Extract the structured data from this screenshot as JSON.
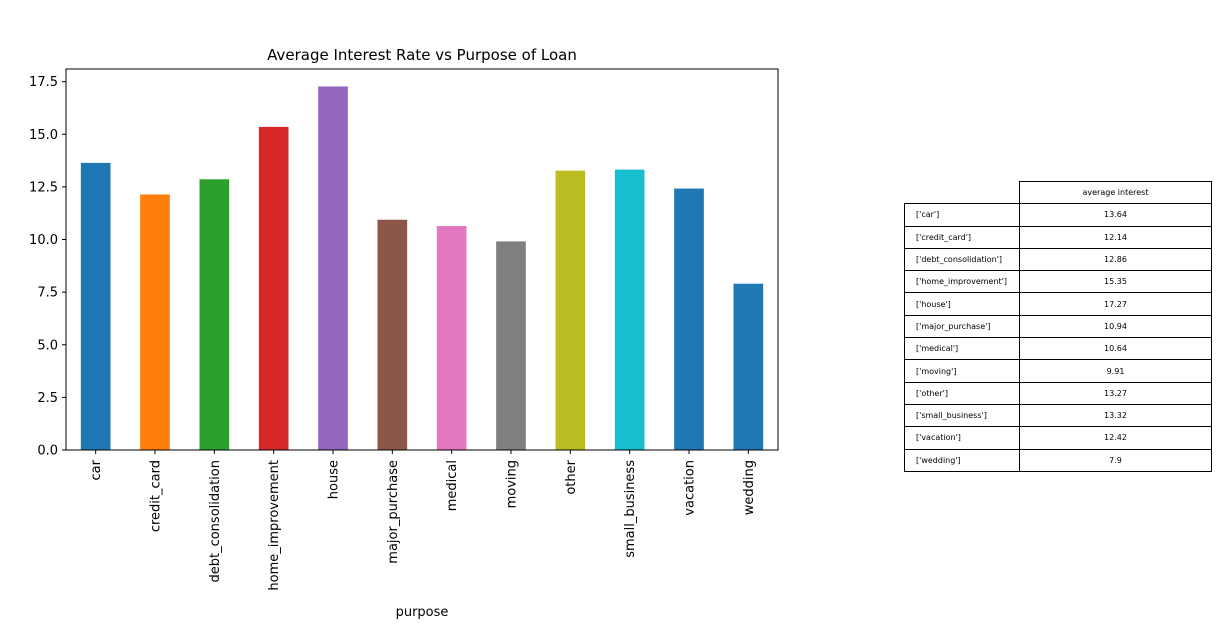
{
  "chart_data": {
    "type": "bar",
    "title": "Average Interest Rate vs Purpose of Loan",
    "xlabel": "purpose",
    "ylabel": "",
    "ylim": [
      0,
      18.1
    ],
    "yticks": [
      "0.0",
      "2.5",
      "5.0",
      "7.5",
      "10.0",
      "12.5",
      "15.0",
      "17.5"
    ],
    "categories": [
      "car",
      "credit_card",
      "debt_consolidation",
      "home_improvement",
      "house",
      "major_purchase",
      "medical",
      "moving",
      "other",
      "small_business",
      "vacation",
      "wedding"
    ],
    "values": [
      13.64,
      12.14,
      12.86,
      15.35,
      17.27,
      10.94,
      10.64,
      9.91,
      13.27,
      13.32,
      12.42,
      7.9
    ],
    "colors": [
      "#1f77b4",
      "#ff7f0e",
      "#2ca02c",
      "#d62728",
      "#9467bd",
      "#8c564b",
      "#e377c2",
      "#7f7f7f",
      "#bcbd22",
      "#17becf",
      "#1f77b4",
      "#1f77b4"
    ],
    "grid": false,
    "legend": "none"
  },
  "table": {
    "header": "average interest",
    "rows": [
      {
        "label": "['car']",
        "value": "13.64"
      },
      {
        "label": "['credit_card']",
        "value": "12.14"
      },
      {
        "label": "['debt_consolidation']",
        "value": "12.86"
      },
      {
        "label": "['home_improvement']",
        "value": "15.35"
      },
      {
        "label": "['house']",
        "value": "17.27"
      },
      {
        "label": "['major_purchase']",
        "value": "10.94"
      },
      {
        "label": "['medical']",
        "value": "10.64"
      },
      {
        "label": "['moving']",
        "value": "9.91"
      },
      {
        "label": "['other']",
        "value": "13.27"
      },
      {
        "label": "['small_business']",
        "value": "13.32"
      },
      {
        "label": "['vacation']",
        "value": "12.42"
      },
      {
        "label": "['wedding']",
        "value": "7.9"
      }
    ]
  }
}
